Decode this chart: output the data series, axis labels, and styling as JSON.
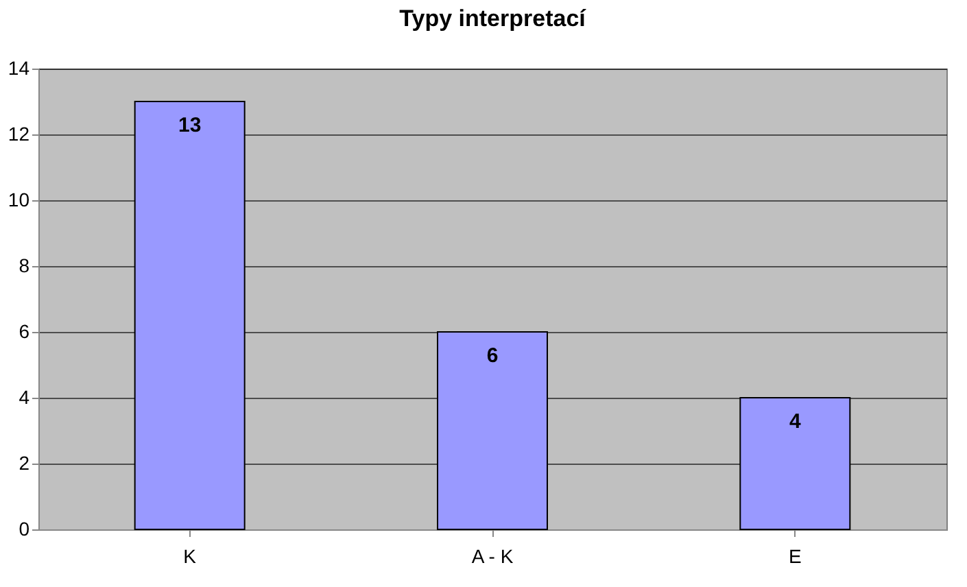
{
  "chart_data": {
    "type": "bar",
    "title": "Typy interpretací",
    "categories": [
      "K",
      "A - K",
      "E"
    ],
    "values": [
      13,
      6,
      4
    ],
    "color": "#9999ff",
    "ylim": [
      0,
      14
    ],
    "yticks": [
      0,
      2,
      4,
      6,
      8,
      10,
      12,
      14
    ],
    "grid": "y",
    "data_labels": true
  }
}
